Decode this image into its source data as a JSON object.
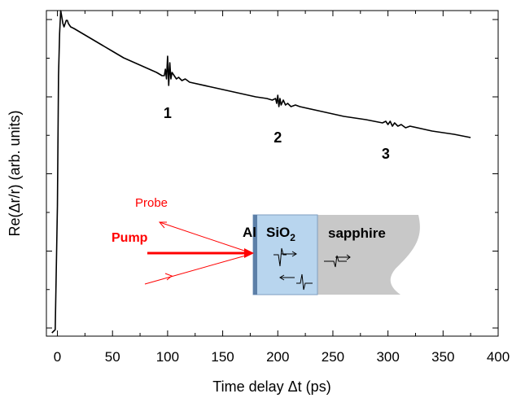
{
  "chart_data": {
    "type": "line",
    "xlabel": "Time delay Δt (ps)",
    "ylabel": "Re(Δr/r) (arb. units)",
    "xlim": [
      -10,
      400
    ],
    "ylim": [
      0,
      1
    ],
    "x_ticks": [
      0,
      50,
      100,
      150,
      200,
      250,
      300,
      350,
      400
    ],
    "y_tick_labels_shown": false,
    "grid": false,
    "series": [
      {
        "color": "#000000",
        "x": [
          -5,
          -2,
          0,
          1,
          2,
          3,
          4,
          5,
          6,
          7,
          8,
          9,
          10,
          12,
          15,
          20,
          30,
          40,
          50,
          60,
          70,
          80,
          90,
          95,
          97,
          98,
          99,
          100,
          101,
          102,
          103,
          104,
          106,
          108,
          110,
          113,
          116,
          120,
          140,
          160,
          180,
          190,
          195,
          198,
          199,
          200,
          201,
          202,
          203,
          205,
          207,
          209,
          212,
          216,
          220,
          240,
          260,
          280,
          295,
          298,
          300,
          302,
          304,
          306,
          309,
          312,
          316,
          320,
          340,
          360,
          375
        ],
        "y": [
          0.01,
          0.02,
          0.4,
          0.8,
          0.93,
          1.0,
          0.98,
          0.96,
          0.95,
          0.96,
          0.97,
          0.97,
          0.96,
          0.95,
          0.945,
          0.935,
          0.915,
          0.895,
          0.875,
          0.855,
          0.84,
          0.825,
          0.81,
          0.8,
          0.8,
          0.82,
          0.79,
          0.86,
          0.77,
          0.84,
          0.79,
          0.81,
          0.8,
          0.79,
          0.795,
          0.785,
          0.79,
          0.78,
          0.765,
          0.75,
          0.735,
          0.73,
          0.725,
          0.73,
          0.715,
          0.74,
          0.705,
          0.73,
          0.71,
          0.725,
          0.71,
          0.715,
          0.705,
          0.71,
          0.705,
          0.69,
          0.675,
          0.665,
          0.655,
          0.66,
          0.65,
          0.66,
          0.645,
          0.655,
          0.645,
          0.65,
          0.64,
          0.645,
          0.63,
          0.62,
          0.61
        ]
      }
    ],
    "annotations": [
      {
        "text": "1",
        "x": 100,
        "y": 0.67
      },
      {
        "text": "2",
        "x": 200,
        "y": 0.595
      },
      {
        "text": "3",
        "x": 298,
        "y": 0.545
      }
    ],
    "inset": {
      "probe_label": "Probe",
      "pump_label": "Pump",
      "layer_al": "Al",
      "layer_sio2_base": "SiO",
      "layer_sio2_sub": "2",
      "substrate": "sapphire",
      "colors": {
        "probe": "#ff0000",
        "pump": "#ff0000",
        "sio2": "#b8d5ee",
        "al": "#5c7fa8",
        "sapphire": "#c8c8c8"
      }
    }
  }
}
